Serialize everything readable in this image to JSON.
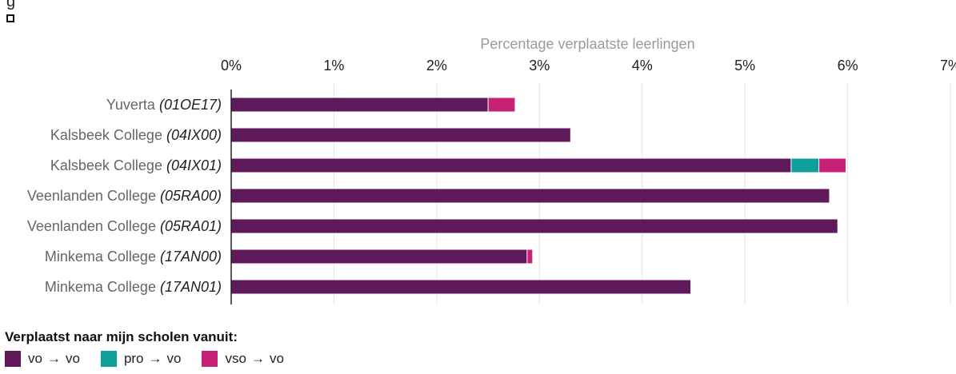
{
  "top_fragment": "g",
  "chart_data": {
    "type": "bar",
    "orientation": "horizontal",
    "stacked": true,
    "title": "",
    "xlabel": "Percentage verplaatste leerlingen",
    "xlabel_position": "top",
    "xlim": [
      0,
      7
    ],
    "xticks": [
      "0%",
      "1%",
      "2%",
      "3%",
      "4%",
      "5%",
      "6%",
      "7%"
    ],
    "grid": true,
    "categories": [
      {
        "name": "Yuverta ",
        "code": "(01OE17)"
      },
      {
        "name": "Kalsbeek College ",
        "code": "(04IX00)"
      },
      {
        "name": "Kalsbeek College ",
        "code": "(04IX01)"
      },
      {
        "name": "Veenlanden College ",
        "code": "(05RA00)"
      },
      {
        "name": "Veenlanden College ",
        "code": "(05RA01)"
      },
      {
        "name": "Minkema College ",
        "code": "(17AN00)"
      },
      {
        "name": "Minkema College ",
        "code": "(17AN01)"
      }
    ],
    "series": [
      {
        "name": "vo",
        "from": "vo",
        "color": "#5f1a5b",
        "values": [
          2.5,
          3.3,
          5.45,
          5.82,
          5.9,
          2.88,
          4.47
        ]
      },
      {
        "name": "vo",
        "from": "pro",
        "color": "#0f9e99",
        "values": [
          0,
          0,
          0.27,
          0,
          0,
          0,
          0
        ]
      },
      {
        "name": "vo",
        "from": "vso",
        "color": "#c72176",
        "values": [
          0.26,
          0,
          0.26,
          0,
          0,
          0.05,
          0
        ]
      }
    ],
    "legend_title": "Verplaatst naar mijn scholen vanuit:",
    "legend_arrow": "→",
    "legend_position": "bottom-left"
  }
}
